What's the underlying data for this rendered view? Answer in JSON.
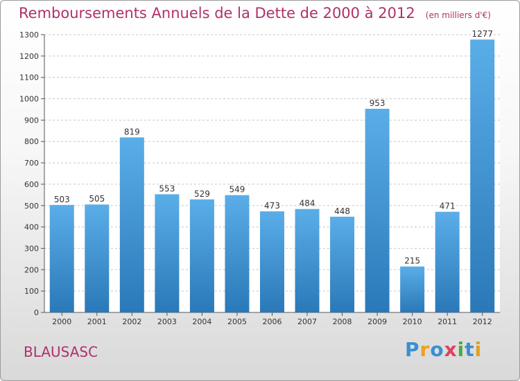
{
  "header": {
    "title": "Remboursements Annuels de la Dette de 2000 à 2012",
    "subtitle": "(en milliers d'€)"
  },
  "commune": "BLAUSASC",
  "logo": {
    "text": "Proxiti",
    "letters": [
      {
        "char": "P",
        "color": "#3a8fd0"
      },
      {
        "char": "r",
        "color": "#f0a020"
      },
      {
        "char": "o",
        "color": "#3a8fd0"
      },
      {
        "char": "x",
        "color": "#e04060"
      },
      {
        "char": "i",
        "color": "#4aaa40"
      },
      {
        "char": "t",
        "color": "#3a8fd0"
      },
      {
        "char": "i",
        "color": "#e0a020"
      }
    ]
  },
  "chart_data": {
    "type": "bar",
    "categories": [
      "2000",
      "2001",
      "2002",
      "2003",
      "2004",
      "2005",
      "2006",
      "2007",
      "2008",
      "2009",
      "2010",
      "2011",
      "2012"
    ],
    "values": [
      503,
      505,
      819,
      553,
      529,
      549,
      473,
      484,
      448,
      953,
      215,
      471,
      1277
    ],
    "data_labels": [
      "503",
      "505",
      "819",
      "553",
      "529",
      "549",
      "473",
      "484",
      "448",
      "953",
      "215",
      "471",
      "1277"
    ],
    "ylim": [
      0,
      1300
    ],
    "y_ticks": [
      "0",
      "100",
      "200",
      "300",
      "400",
      "500",
      "600",
      "700",
      "800",
      "900",
      "1000",
      "1100",
      "1200",
      "1300"
    ],
    "grid": true,
    "bar_color": "#3d96d8"
  }
}
